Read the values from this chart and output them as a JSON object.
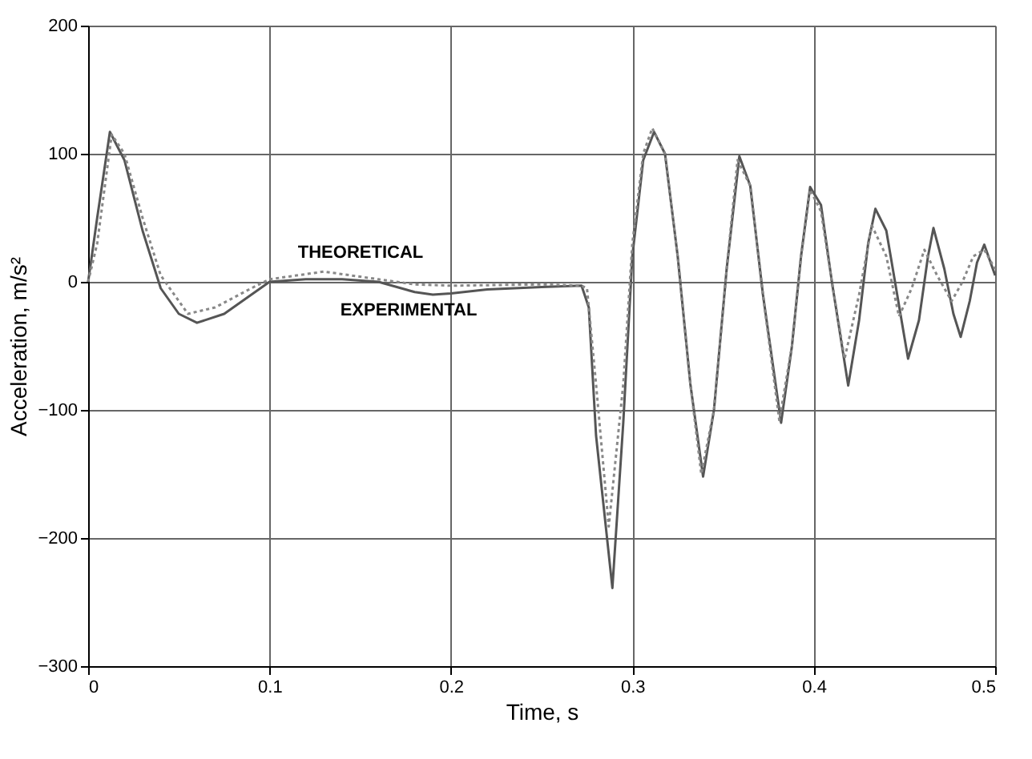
{
  "chart_data": {
    "type": "line",
    "xlabel": "Time,  s",
    "ylabel": "Acceleration, m/s²",
    "xlim": [
      0,
      0.5
    ],
    "ylim": [
      -300,
      200
    ],
    "xticks": [
      0,
      0.1,
      0.2,
      0.3,
      0.4,
      0.5
    ],
    "yticks": [
      -300,
      -200,
      -100,
      0,
      100,
      200
    ],
    "grid": true,
    "series": [
      {
        "name": "EXPERIMENTAL",
        "color": "#555555",
        "line_style": "solid",
        "x": [
          0,
          0.005,
          0.012,
          0.02,
          0.03,
          0.04,
          0.05,
          0.06,
          0.075,
          0.09,
          0.1,
          0.12,
          0.14,
          0.16,
          0.18,
          0.19,
          0.2,
          0.22,
          0.25,
          0.272,
          0.276,
          0.28,
          0.289,
          0.295,
          0.3,
          0.306,
          0.312,
          0.318,
          0.325,
          0.332,
          0.339,
          0.345,
          0.352,
          0.359,
          0.365,
          0.372,
          0.382,
          0.388,
          0.393,
          0.398,
          0.404,
          0.41,
          0.419,
          0.425,
          0.43,
          0.434,
          0.44,
          0.446,
          0.452,
          0.458,
          0.463,
          0.466,
          0.472,
          0.477,
          0.481,
          0.486,
          0.49,
          0.494,
          0.5
        ],
        "values": [
          0,
          50,
          117,
          95,
          40,
          -5,
          -25,
          -32,
          -25,
          -10,
          0,
          2,
          2,
          0,
          -8,
          -10,
          -9,
          -6,
          -4,
          -3,
          -20,
          -120,
          -239,
          -110,
          20,
          95,
          117,
          100,
          20,
          -80,
          -152,
          -100,
          10,
          98,
          75,
          -10,
          -110,
          -50,
          20,
          74,
          60,
          0,
          -81,
          -30,
          30,
          57,
          40,
          -10,
          -60,
          -30,
          20,
          42,
          10,
          -25,
          -43,
          -15,
          15,
          29,
          5
        ]
      },
      {
        "name": "THEORETICAL",
        "color": "#888888",
        "line_style": "dotted",
        "x": [
          0,
          0.005,
          0.013,
          0.02,
          0.03,
          0.04,
          0.055,
          0.07,
          0.09,
          0.1,
          0.13,
          0.16,
          0.18,
          0.2,
          0.25,
          0.272,
          0.275,
          0.28,
          0.287,
          0.295,
          0.3,
          0.306,
          0.311,
          0.318,
          0.325,
          0.332,
          0.338,
          0.345,
          0.352,
          0.358,
          0.365,
          0.372,
          0.381,
          0.388,
          0.393,
          0.398,
          0.404,
          0.41,
          0.417,
          0.425,
          0.432,
          0.44,
          0.447,
          0.454,
          0.461,
          0.468,
          0.476,
          0.482,
          0.488,
          0.494,
          0.5
        ],
        "values": [
          0,
          30,
          115,
          100,
          50,
          5,
          -25,
          -20,
          -5,
          2,
          8,
          2,
          -2,
          -3,
          -2,
          -3,
          -5,
          -80,
          -191,
          -80,
          30,
          100,
          120,
          100,
          20,
          -80,
          -150,
          -100,
          10,
          95,
          75,
          -10,
          -108,
          -50,
          20,
          72,
          55,
          0,
          -60,
          -10,
          44,
          20,
          -27,
          -5,
          25,
          5,
          -15,
          0,
          20,
          25,
          10
        ]
      }
    ]
  }
}
